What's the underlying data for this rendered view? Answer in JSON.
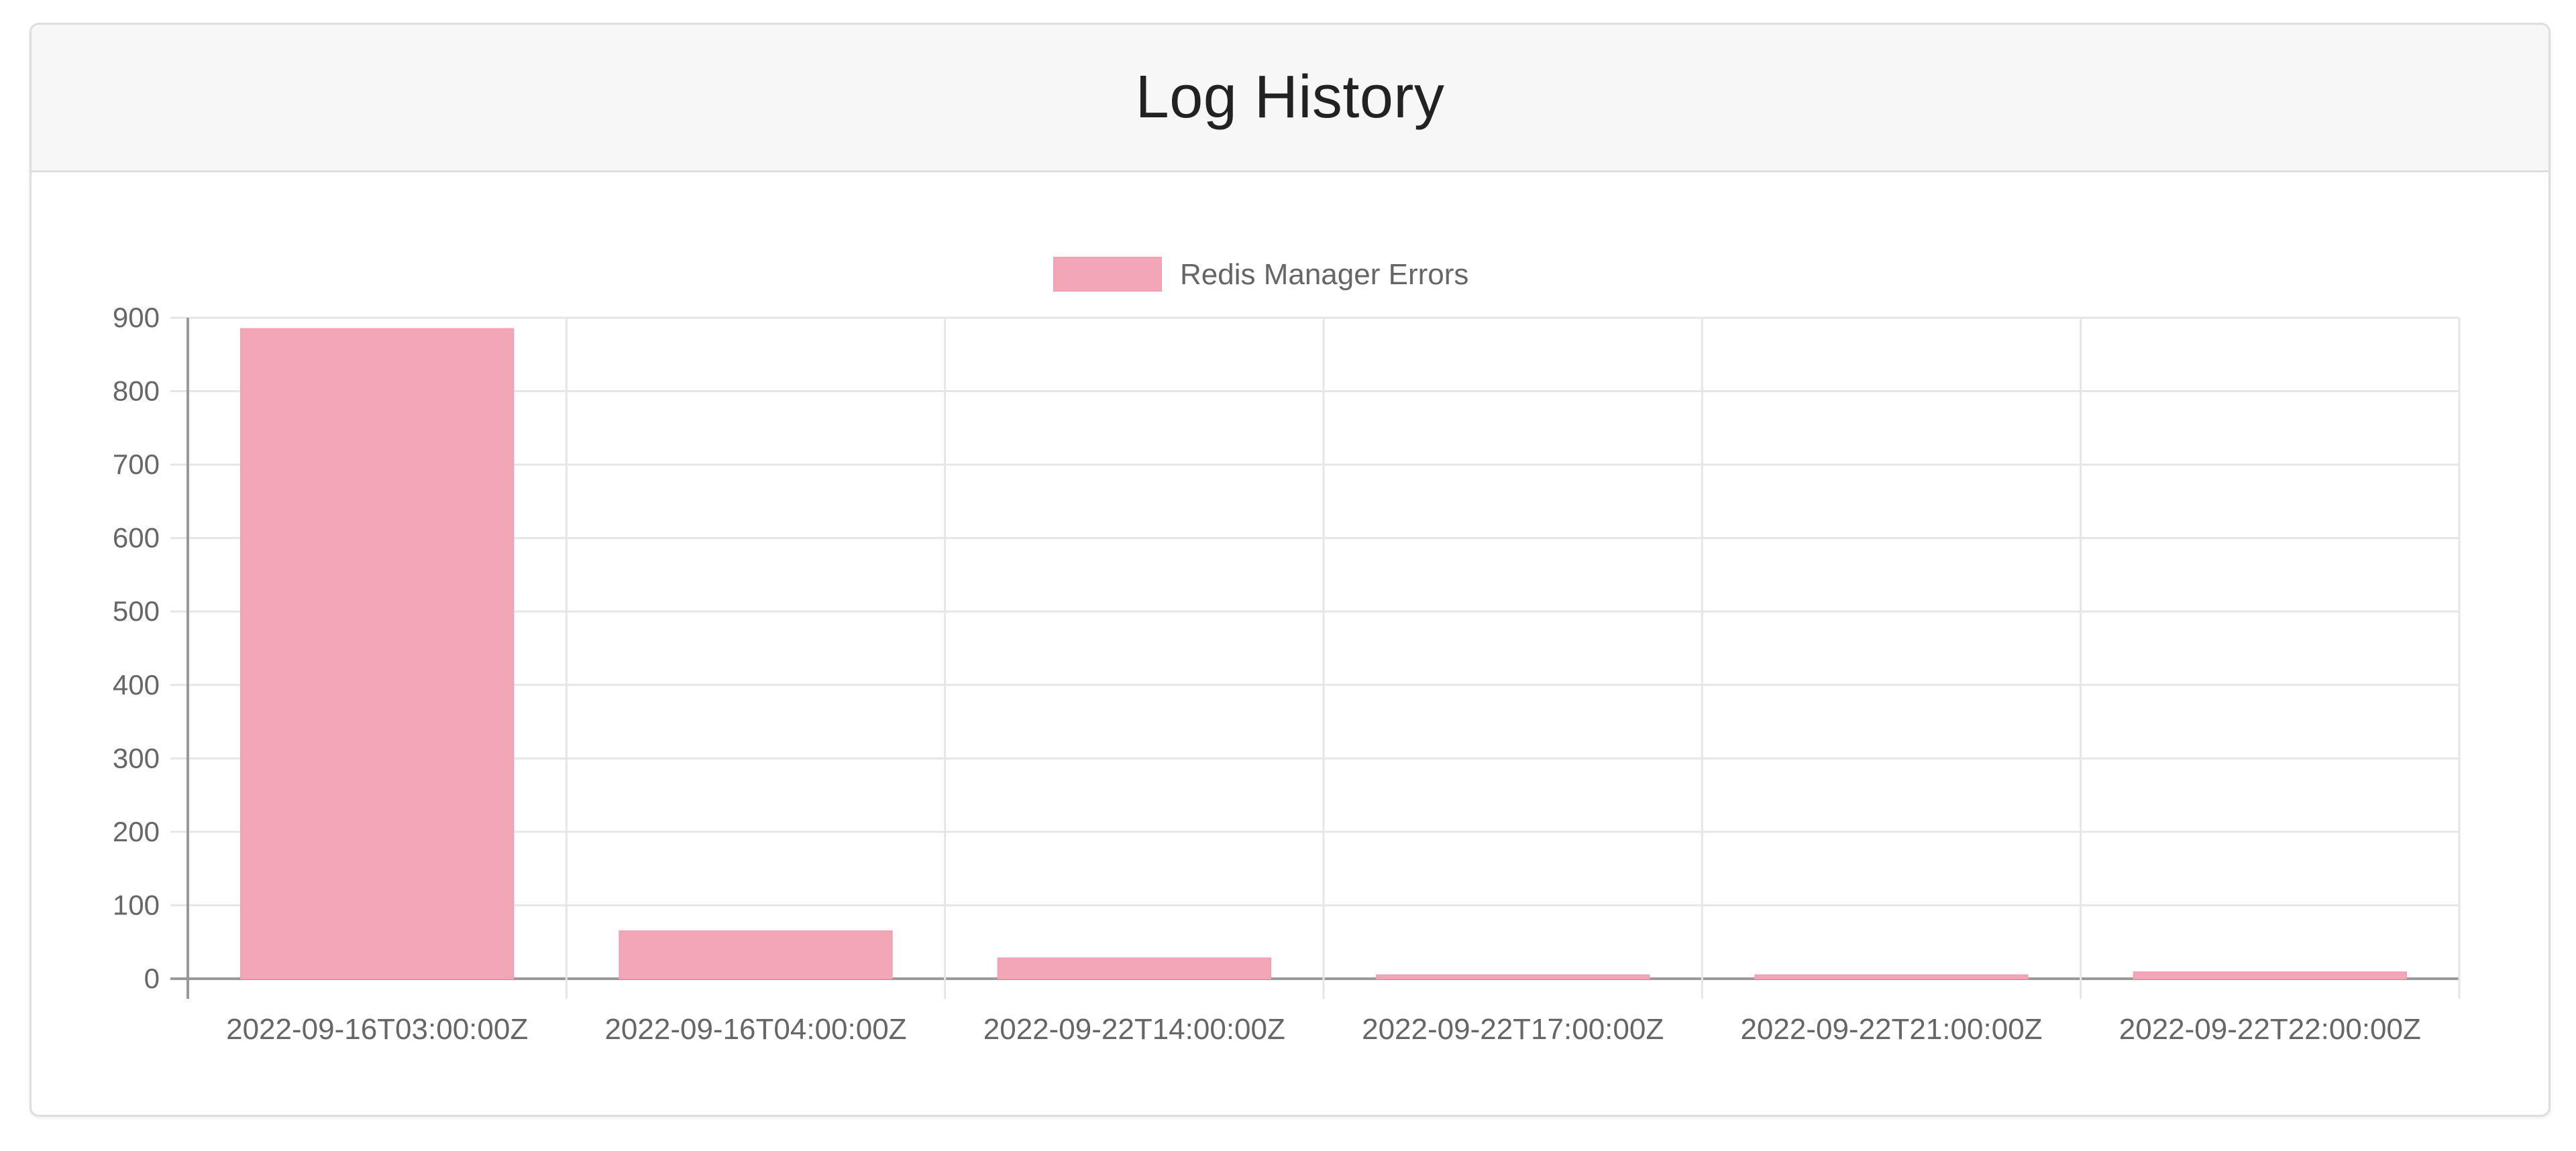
{
  "card": {
    "title": "Log History"
  },
  "chart_data": {
    "type": "bar",
    "title": "",
    "xlabel": "",
    "ylabel": "",
    "categories": [
      "2022-09-16T03:00:00Z",
      "2022-09-16T04:00:00Z",
      "2022-09-22T14:00:00Z",
      "2022-09-22T17:00:00Z",
      "2022-09-22T21:00:00Z",
      "2022-09-22T22:00:00Z"
    ],
    "series": [
      {
        "name": "Redis Manager Errors",
        "values": [
          885,
          65,
          28,
          5,
          5,
          9
        ],
        "color": "#f2a6b6",
        "border_color": "#f4a0b3"
      }
    ],
    "ylim": [
      0,
      900
    ],
    "y_ticks": [
      0,
      100,
      200,
      300,
      400,
      500,
      600,
      700,
      800,
      900
    ],
    "grid": true,
    "legend_position": "top"
  }
}
